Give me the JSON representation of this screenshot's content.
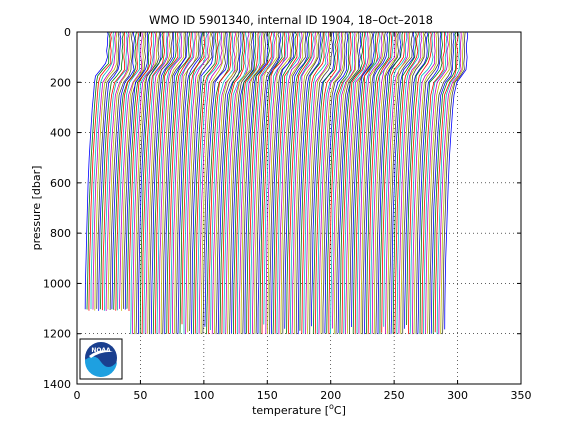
{
  "chart_data": {
    "type": "line",
    "title": "WMO ID 5901340, internal ID 1904, 18–Oct–2018",
    "xlabel_prefix": "temperature [",
    "xlabel_super": "o",
    "xlabel_suffix": "C]",
    "ylabel": "pressure [dbar]",
    "xlim": [
      0,
      350
    ],
    "ylim": [
      1400,
      0
    ],
    "y_reversed": true,
    "grid": true,
    "grid_style": "dotted",
    "xticks": [
      0,
      50,
      100,
      150,
      200,
      250,
      300,
      350
    ],
    "yticks": [
      0,
      200,
      400,
      600,
      800,
      1000,
      1200,
      1400
    ],
    "xtick_labels": [
      "0",
      "50",
      "100",
      "150",
      "200",
      "250",
      "300",
      "350"
    ],
    "ytick_labels": [
      "0",
      "200",
      "400",
      "600",
      "800",
      "1000",
      "1200",
      "1400"
    ],
    "series_description": "Waterfall of ~190 temperature profiles, each offset by ~1.5 degC from the previous; surface ~24 degC, mixed layer to ~100-160 dbar, thermocline drop to ~13 degC near 200 dbar, then gradual cooling to ~5 degC at depth",
    "profile_count": 190,
    "offset_step": 1.5,
    "colors": [
      "#0000ff",
      "#008000",
      "#ff0000",
      "#00bfbf",
      "#bf00bf",
      "#bfbf00",
      "#404040"
    ]
  },
  "logo": {
    "name": "noaa-logo",
    "text": "NOAA"
  }
}
